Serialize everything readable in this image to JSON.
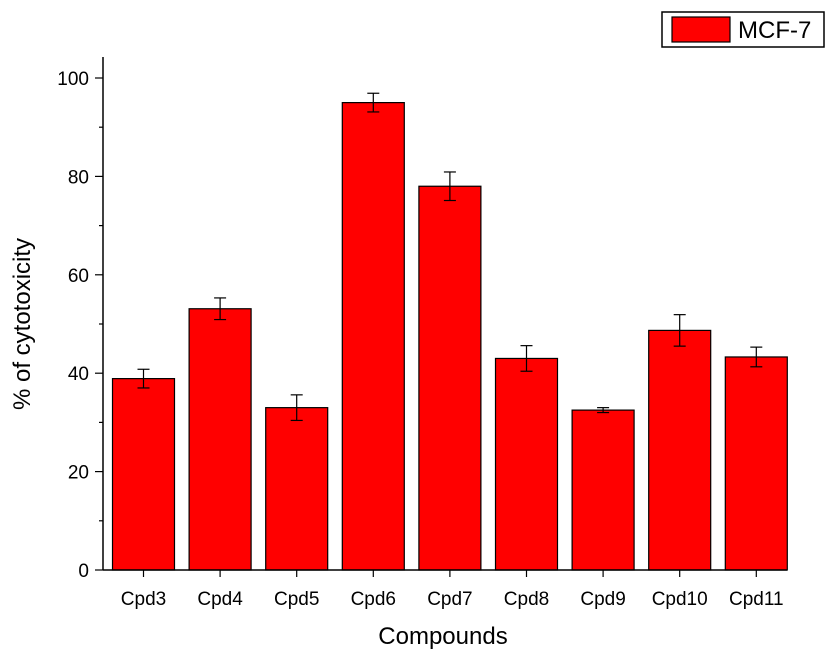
{
  "chart_data": {
    "type": "bar",
    "categories": [
      "Cpd3",
      "Cpd4",
      "Cpd5",
      "Cpd6",
      "Cpd7",
      "Cpd8",
      "Cpd9",
      "Cpd10",
      "Cpd11"
    ],
    "series": [
      {
        "name": "MCF-7",
        "color": "#ff0000",
        "values": [
          38.9,
          53.1,
          33.0,
          95.0,
          78.0,
          43.0,
          32.5,
          48.7,
          43.3
        ],
        "errors": [
          1.9,
          2.2,
          2.6,
          1.9,
          2.9,
          2.6,
          0.5,
          3.2,
          2.0
        ]
      }
    ],
    "xlabel": "Compounds",
    "ylabel": "% of cytotoxicity",
    "ylim": [
      0,
      100
    ],
    "yticks": [
      0,
      20,
      40,
      60,
      80,
      100
    ],
    "legend_position": "top-right",
    "grid": false
  }
}
